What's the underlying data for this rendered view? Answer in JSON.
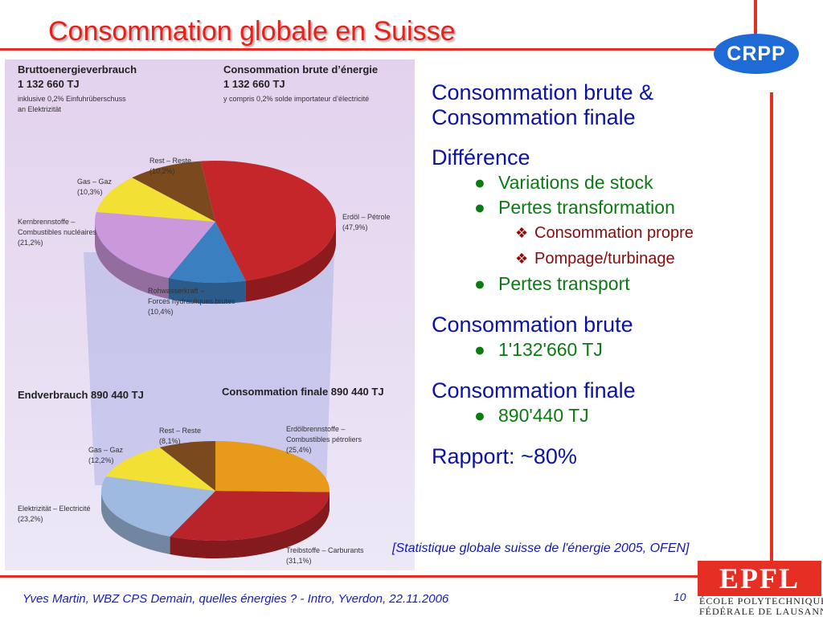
{
  "slide": {
    "title": "Consommation globale en Suisse",
    "logo_text": "CRPP",
    "epfl_logo": "EPFL",
    "epfl_line1": "ÉCOLE POLYTECHNIQUE",
    "epfl_line2": "FÉDÉRALE DE LAUSANNE",
    "citation": "[Statistique globale suisse de l'énergie 2005, OFEN]",
    "footer": "Yves Martin, WBZ CPS Demain, quelles énergies ? - Intro, Yverdon, 22.11.2006",
    "page_number": "10"
  },
  "right": {
    "h1": "Consommation brute &",
    "h1b": "Consommation finale",
    "h2": "Différence",
    "b1": "Variations de stock",
    "b2": "Pertes transformation",
    "s1": "Consommation propre",
    "s2": "Pompage/turbinage",
    "b3": "Pertes transport",
    "h3": "Consommation brute",
    "b4": "1'132'660 TJ",
    "h4": "Consommation finale",
    "b5": "890'440 TJ",
    "h5": "Rapport: ~80%"
  },
  "figure": {
    "top_de_title": "Bruttoenergieverbrauch",
    "top_de_value": "1 132 660 TJ",
    "top_de_note1": "inklusive 0,2% Einfuhrüberschuss",
    "top_de_note2": "an Elektrizität",
    "top_fr_title": "Consommation brute d’énergie",
    "top_fr_value": "1 132 660 TJ",
    "top_fr_note": "y compris 0,2% solde importateur d’électricité",
    "bot_de_title": "Endverbrauch 890 440 TJ",
    "bot_fr_title": "Consommation finale 890 440 TJ",
    "top_labels": {
      "rest1": "Rest – Reste",
      "rest2": "(10,2%)",
      "gas1": "Gas – Gaz",
      "gas2": "(10,3%)",
      "kern1": "Kernbrennstoffe –",
      "kern2": "Combustibles nucléaires",
      "kern3": "(21,2%)",
      "oil1": "Erdöl – Pétrole",
      "oil2": "(47,9%)",
      "hydro1": "Rohwasserkraft –",
      "hydro2": "Forces hydrauliques brutes",
      "hydro3": "(10,4%)"
    },
    "bottom_labels": {
      "rest1": "Rest – Reste",
      "rest2": "(8,1%)",
      "gas1": "Gas – Gaz",
      "gas2": "(12,2%)",
      "oil1": "Erdölbrennstoffe –",
      "oil2": "Combustibles pétroliers",
      "oil3": "(25,4%)",
      "elec1": "Elektrizität – Electricité",
      "elec2": "(23,2%)",
      "fuel1": "Treibstoffe – Carburants",
      "fuel2": "(31,1%)"
    }
  },
  "chart_data": [
    {
      "type": "pie",
      "title": "Consommation brute d’énergie",
      "categories": [
        "Erdöl – Pétrole",
        "Rohwasserkraft – Forces hydrauliques brutes",
        "Kernbrennstoffe – Combustibles nucléaires",
        "Gas – Gaz",
        "Rest – Reste"
      ],
      "values": [
        47.9,
        10.4,
        21.2,
        10.3,
        10.2
      ],
      "colors": [
        "#c4262a",
        "#3a7fc0",
        "#cc98dc",
        "#f3e034",
        "#7a4a1e"
      ]
    },
    {
      "type": "pie",
      "title": "Consommation finale 890 440 TJ",
      "categories": [
        "Erdölbrennstoffe – Combustibles pétroliers",
        "Treibstoffe – Carburants",
        "Elektrizität – Electricité",
        "Gas – Gaz",
        "Rest – Reste"
      ],
      "values": [
        25.4,
        31.1,
        23.2,
        12.2,
        8.1
      ],
      "colors": [
        "#e89a1a",
        "#b8242a",
        "#9ebae0",
        "#f3e034",
        "#7a4a1e"
      ]
    }
  ]
}
